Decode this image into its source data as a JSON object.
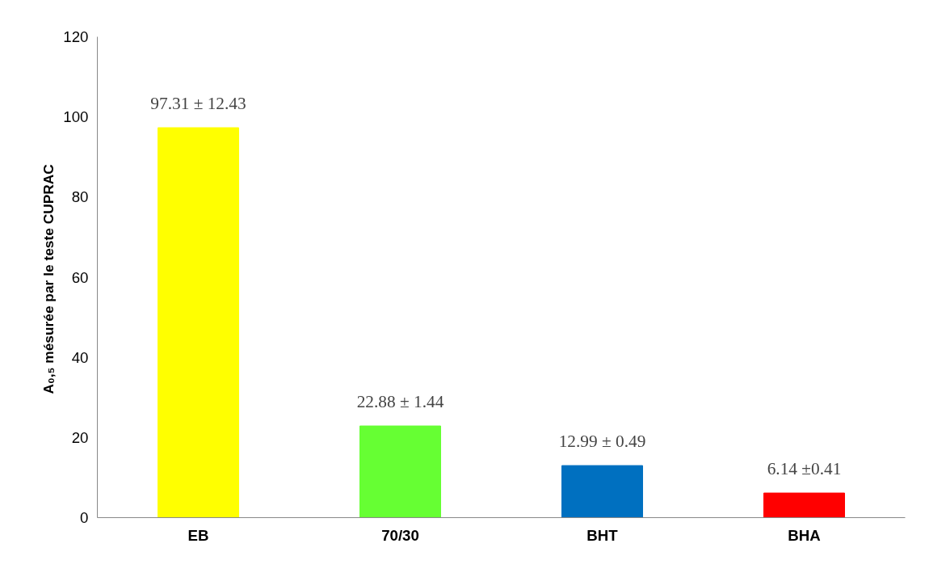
{
  "chart_data": {
    "type": "bar",
    "ylabel": "A₀,₅  mésurée par le teste CUPRAC",
    "categories": [
      "EB",
      "70/30",
      "BHT",
      "BHA"
    ],
    "values": [
      97.31,
      22.88,
      12.99,
      6.14
    ],
    "colors": [
      "#ffff00",
      "#66ff33",
      "#0070c0",
      "#ff0000"
    ],
    "value_labels": [
      "97.31 ± 12.43",
      "22.88 ± 1.44",
      "12.99 ± 0.49",
      "6.14 ±0.41"
    ],
    "ylim": [
      0,
      120
    ],
    "yticks": [
      0,
      20,
      40,
      60,
      80,
      100,
      120
    ],
    "grid": false
  }
}
